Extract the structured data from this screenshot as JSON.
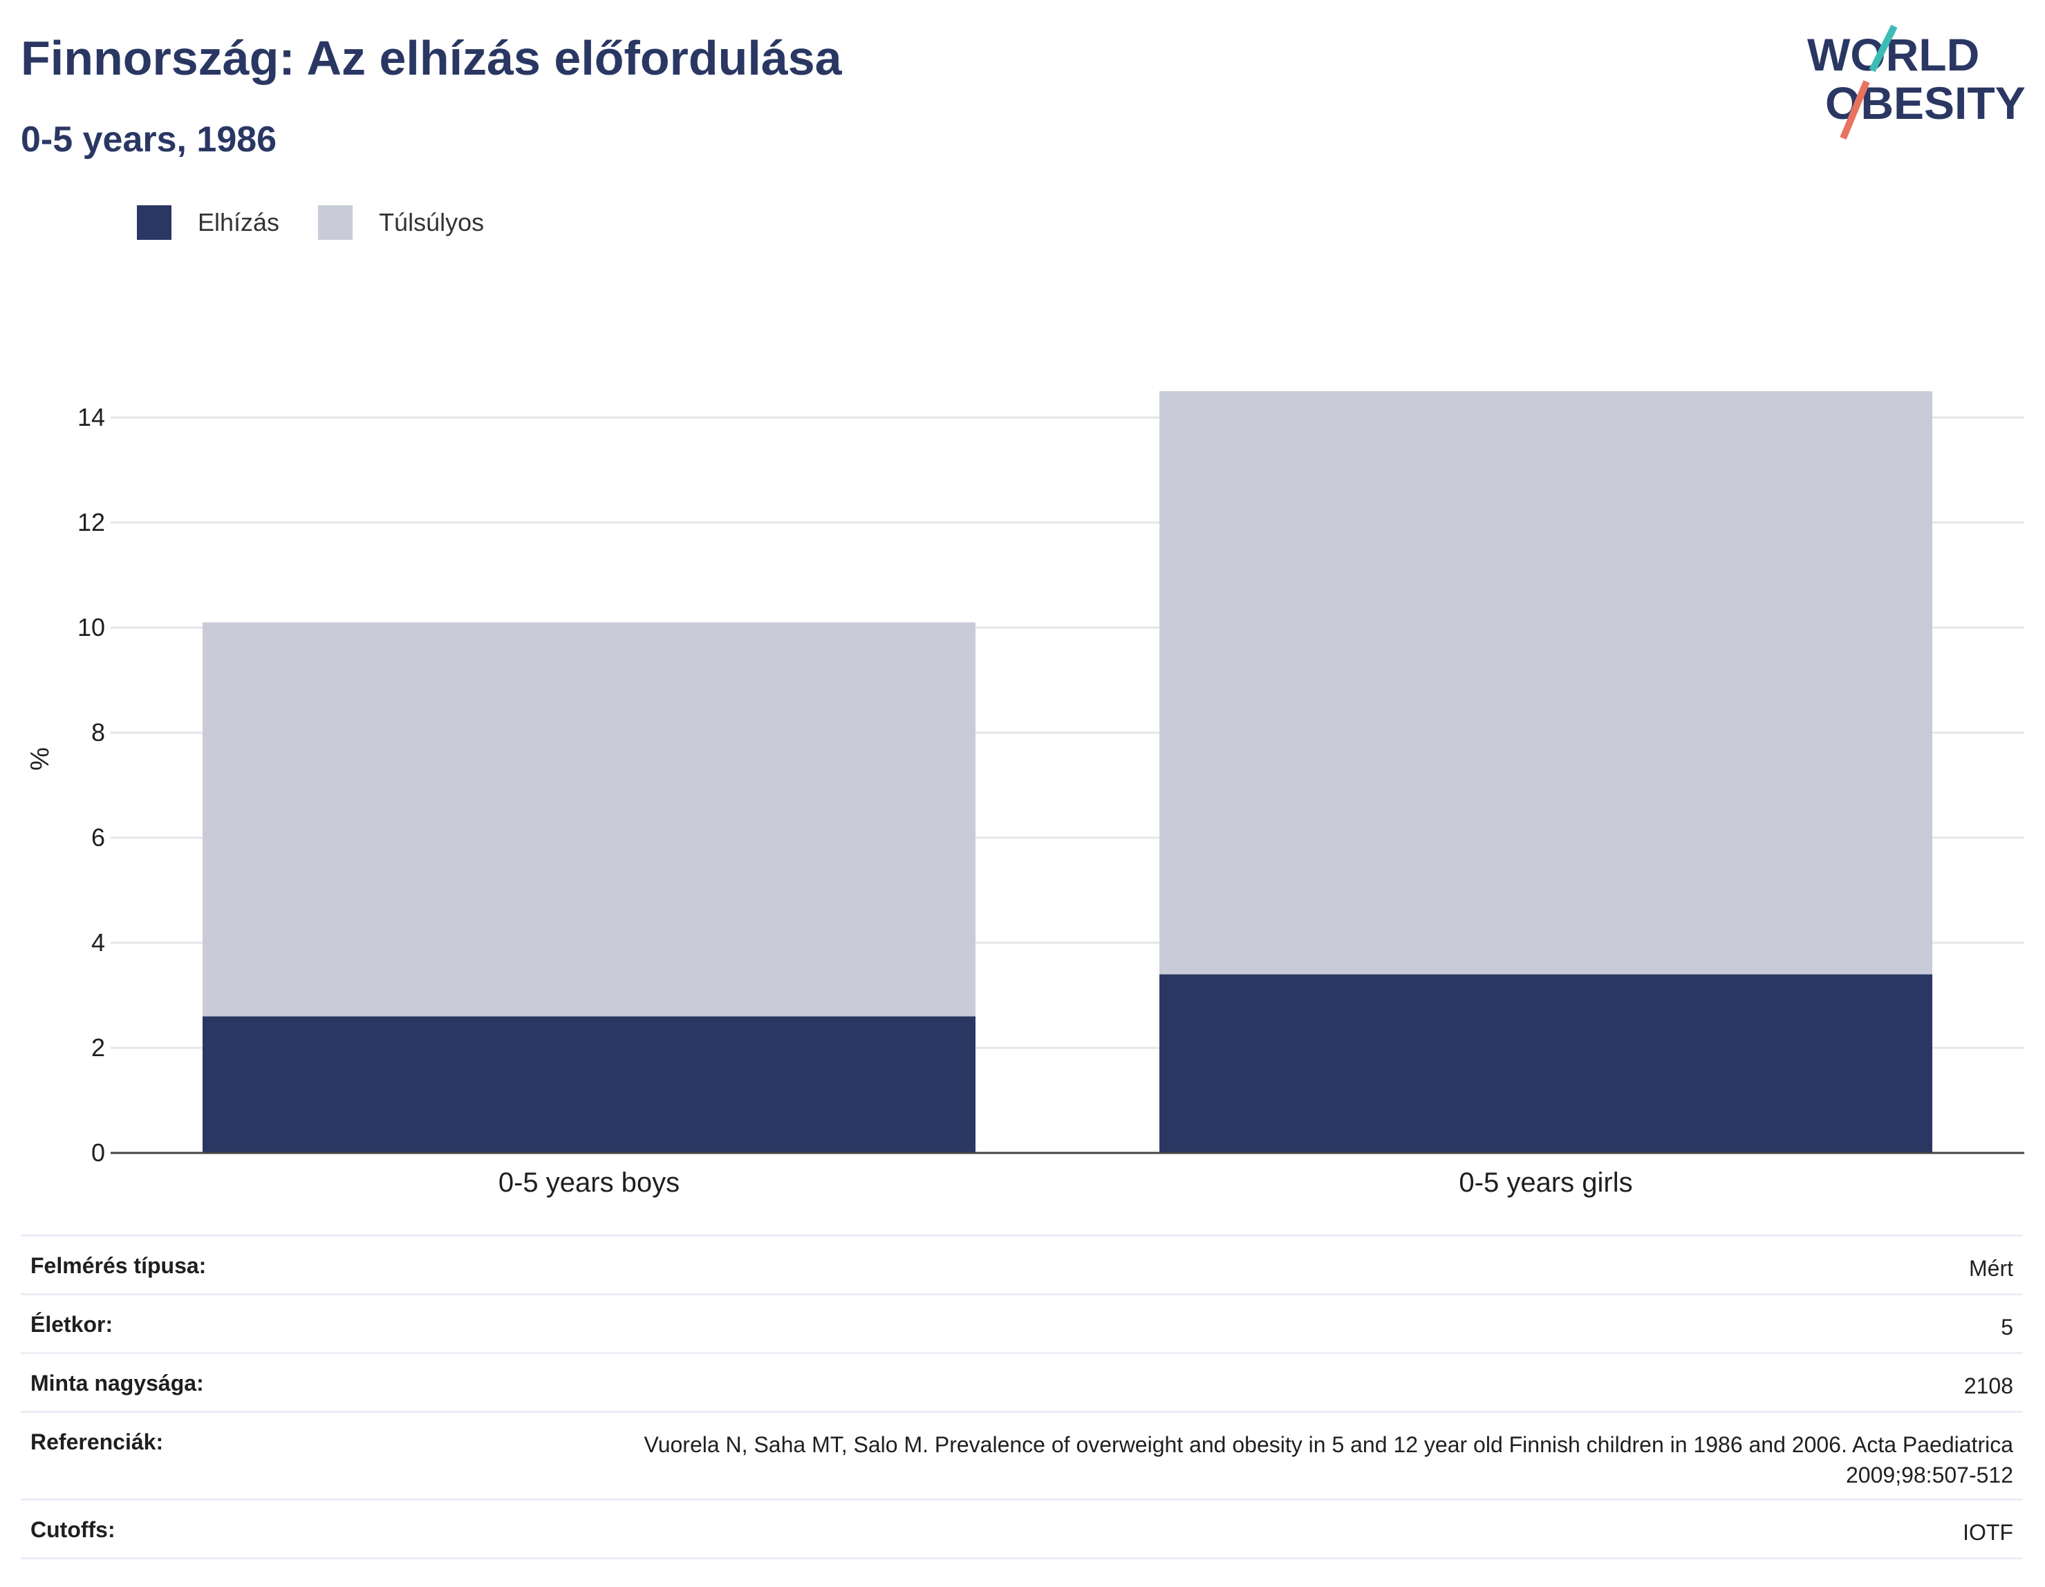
{
  "header": {
    "title": "Finnország: Az elhízás előfordulása",
    "subtitle": "0-5 years, 1986"
  },
  "logo": {
    "line1": "WORLD",
    "line2": "OBESITY"
  },
  "colors": {
    "obesity": "#2a3763",
    "overweight": "#c9ccd8",
    "title": "#2a3763",
    "accent_teal": "#3dbbb5",
    "accent_red": "#e8735e"
  },
  "chart_data": {
    "type": "bar",
    "stacked": true,
    "categories": [
      "0-5 years boys",
      "0-5 years girls"
    ],
    "series": [
      {
        "name": "Elhízás",
        "values": [
          2.6,
          3.4
        ]
      },
      {
        "name": "Túlsúlyos",
        "values": [
          7.5,
          11.1
        ]
      }
    ],
    "ylabel": "%",
    "ylim": [
      0,
      15
    ],
    "yticks": [
      0,
      2,
      4,
      6,
      8,
      10,
      12,
      14
    ],
    "grid": true,
    "legend_position": "top-left"
  },
  "info": {
    "rows": [
      {
        "key": "Felmérés típusa:",
        "value": "Mért"
      },
      {
        "key": "Életkor:",
        "value": "5"
      },
      {
        "key": "Minta nagysága:",
        "value": "2108"
      },
      {
        "key": "Referenciák:",
        "value": "Vuorela N, Saha MT, Salo M. Prevalence of overweight and obesity in 5 and 12 year old Finnish children in 1986 and 2006. Acta Paediatrica 2009;98:507-512"
      },
      {
        "key": "Cutoffs:",
        "value": "IOTF"
      }
    ]
  }
}
